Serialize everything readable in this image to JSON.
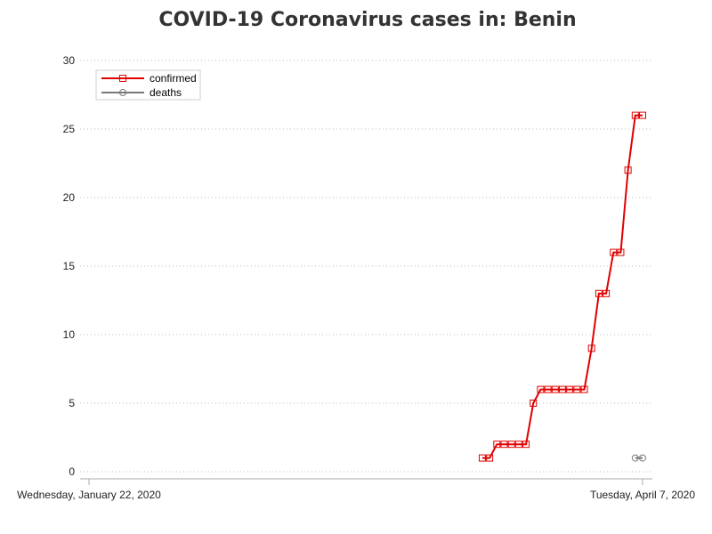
{
  "chart_data": {
    "type": "line",
    "title": "COVID-19 Coronavirus cases in: Benin",
    "xlabel": "",
    "ylabel": "",
    "x_range_days": [
      0,
      76
    ],
    "x_ticks": [
      {
        "day": 0,
        "label": "Wednesday, January 22, 2020"
      },
      {
        "day": 76,
        "label": "Tuesday, April 7, 2020"
      }
    ],
    "ylim": [
      0,
      30
    ],
    "y_ticks": [
      0,
      5,
      10,
      15,
      20,
      25,
      30
    ],
    "grid": "horizontal dotted",
    "legend_position": "top-left",
    "series": [
      {
        "name": "confirmed",
        "color": "#e00000",
        "marker": "square",
        "days": [
          54,
          55,
          56,
          57,
          58,
          59,
          60,
          61,
          62,
          63,
          64,
          65,
          66,
          67,
          68,
          69,
          70,
          71,
          72,
          73,
          74,
          75,
          76
        ],
        "values": [
          1,
          1,
          2,
          2,
          2,
          2,
          2,
          5,
          6,
          6,
          6,
          6,
          6,
          6,
          6,
          9,
          13,
          13,
          16,
          16,
          22,
          26,
          26
        ]
      },
      {
        "name": "deaths",
        "color": "#777777",
        "marker": "circle",
        "days": [
          75,
          76
        ],
        "values": [
          1,
          1
        ]
      }
    ]
  }
}
